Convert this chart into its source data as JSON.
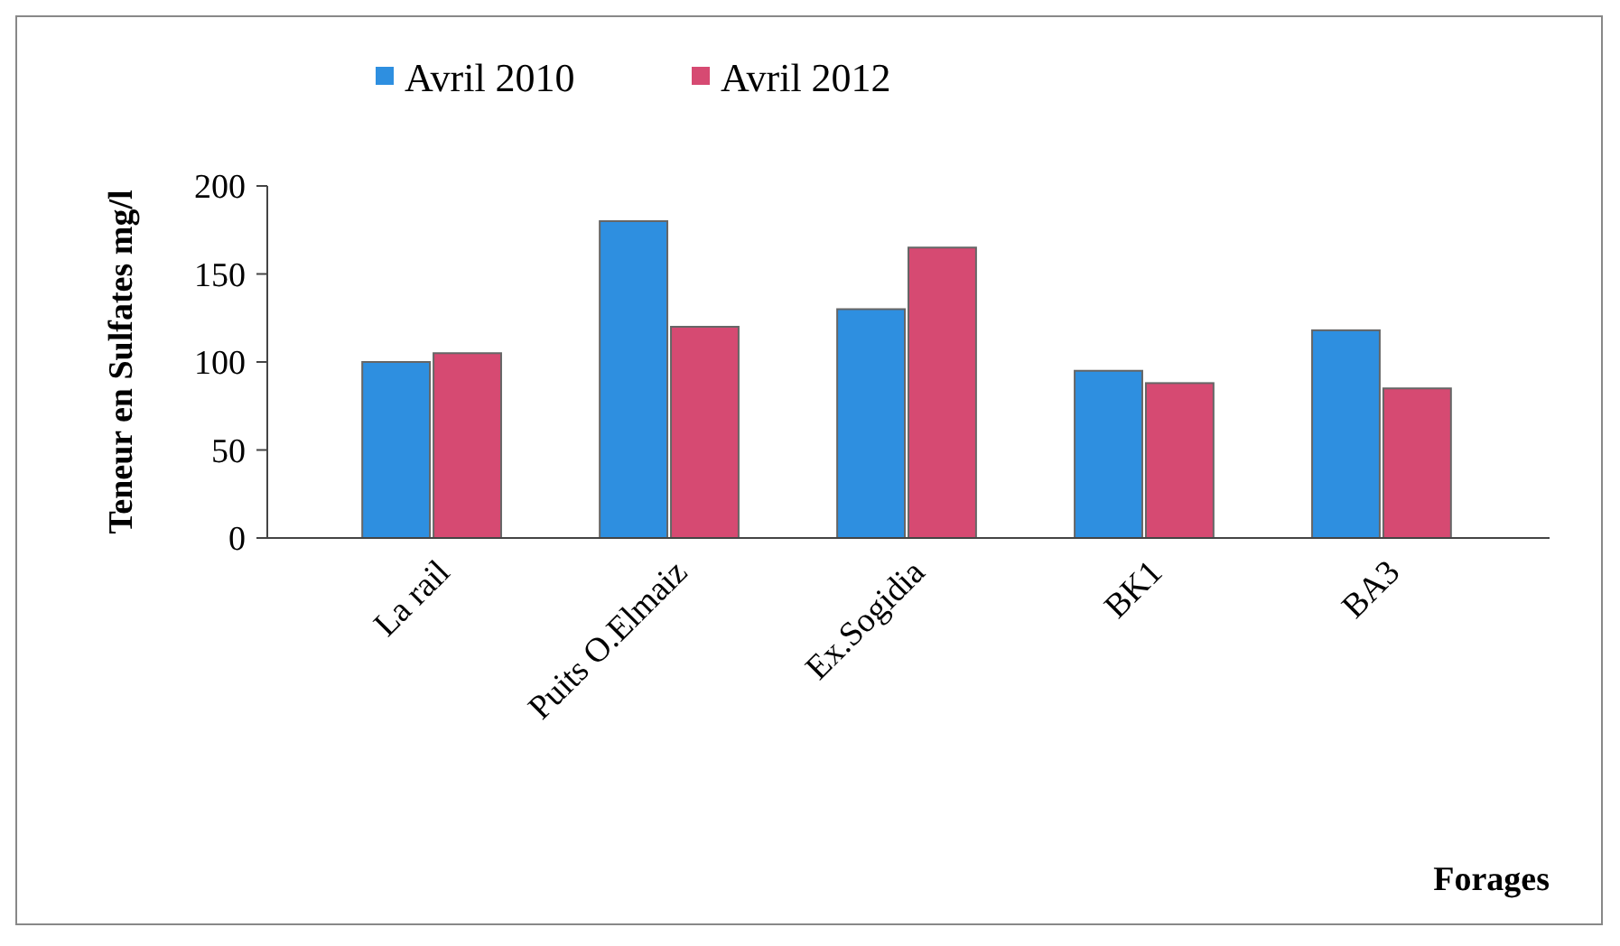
{
  "chart_data": {
    "type": "bar",
    "xlabel": "Forages",
    "ylabel": "Teneur en Sulfates mg/l",
    "categories": [
      "La rail",
      "Puits O.Elmaiz",
      "Ex.Sogidia",
      "BK1",
      "BA3"
    ],
    "series": [
      {
        "name": "Avril 2010",
        "color": "#2e8fe0",
        "values": [
          100,
          180,
          130,
          95,
          118
        ]
      },
      {
        "name": "Avril 2012",
        "color": "#d64a72",
        "values": [
          105,
          120,
          165,
          88,
          85
        ]
      }
    ],
    "ylim": [
      0,
      200
    ],
    "yticks": [
      0,
      50,
      100,
      150,
      200
    ],
    "legend": "top left"
  }
}
